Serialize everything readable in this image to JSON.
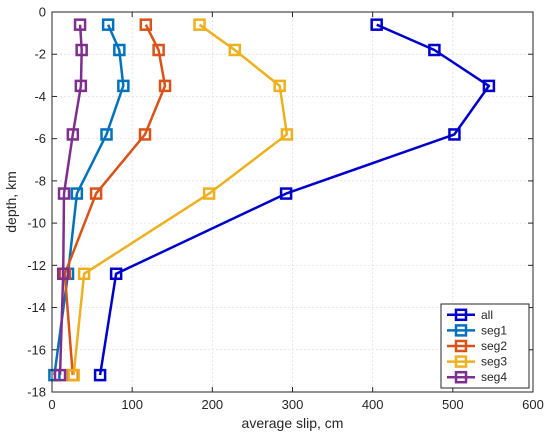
{
  "chart_data": {
    "type": "line",
    "xlabel": "average slip, cm",
    "ylabel": "depth, km",
    "xlim": [
      0,
      600
    ],
    "ylim": [
      -18,
      0
    ],
    "xticks": [
      0,
      100,
      200,
      300,
      400,
      500,
      600
    ],
    "yticks": [
      0,
      -2,
      -4,
      -6,
      -8,
      -10,
      -12,
      -14,
      -16,
      -18
    ],
    "grid": true,
    "legend_position": "bottom-right",
    "marker": "square",
    "series": [
      {
        "name": "all",
        "color": "#0000cc",
        "x": [
          405,
          477,
          545,
          502,
          292,
          80,
          60
        ],
        "y": [
          -0.6,
          -1.8,
          -3.5,
          -5.8,
          -8.6,
          -12.4,
          -17.2
        ]
      },
      {
        "name": "seg1",
        "color": "#0072bd",
        "x": [
          70,
          84,
          89,
          68,
          31,
          20,
          3
        ],
        "y": [
          -0.6,
          -1.8,
          -3.5,
          -5.8,
          -8.6,
          -12.4,
          -17.2
        ]
      },
      {
        "name": "seg2",
        "color": "#d95319",
        "x": [
          117,
          133,
          141,
          116,
          55,
          16,
          26
        ],
        "y": [
          -0.6,
          -1.8,
          -3.5,
          -5.8,
          -8.6,
          -12.4,
          -17.2
        ]
      },
      {
        "name": "seg3",
        "color": "#edb120",
        "x": [
          184,
          228,
          284,
          293,
          196,
          40,
          27
        ],
        "y": [
          -0.6,
          -1.8,
          -3.5,
          -5.8,
          -8.6,
          -12.4,
          -17.2
        ]
      },
      {
        "name": "seg4",
        "color": "#7e2f8e",
        "x": [
          35,
          37,
          36,
          26,
          15,
          14,
          10
        ],
        "y": [
          -0.6,
          -1.8,
          -3.5,
          -5.8,
          -8.6,
          -12.4,
          -17.2
        ]
      }
    ]
  }
}
